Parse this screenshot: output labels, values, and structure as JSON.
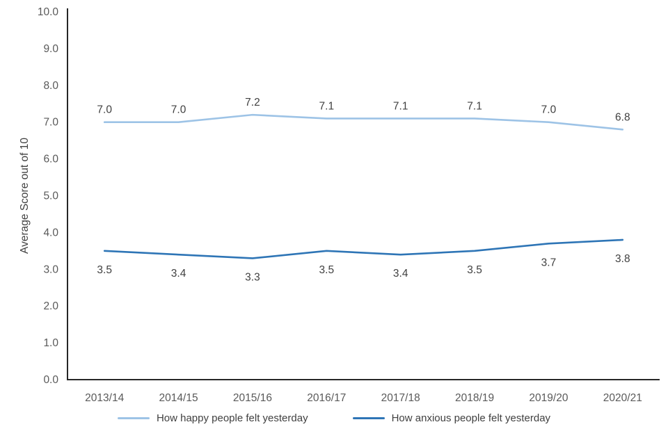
{
  "chart_data": {
    "type": "line",
    "categories": [
      "2013/14",
      "2014/15",
      "2015/16",
      "2016/17",
      "2017/18",
      "2018/19",
      "2019/20",
      "2020/21"
    ],
    "series": [
      {
        "name": "How happy people felt yesterday",
        "values": [
          7.0,
          7.0,
          7.2,
          7.1,
          7.1,
          7.1,
          7.0,
          6.8
        ],
        "color": "#9DC3E6",
        "label_position": "above"
      },
      {
        "name": "How anxious people felt yesterday",
        "values": [
          3.5,
          3.4,
          3.3,
          3.5,
          3.4,
          3.5,
          3.7,
          3.8
        ],
        "color": "#2E75B6",
        "label_position": "below"
      }
    ],
    "title": "",
    "xlabel": "",
    "ylabel": "Average Score out of 10",
    "ylim": [
      0,
      10
    ],
    "ytick_step": 1,
    "yticks": [
      "0.0",
      "1.0",
      "2.0",
      "3.0",
      "4.0",
      "5.0",
      "6.0",
      "7.0",
      "8.0",
      "9.0",
      "10.0"
    ],
    "grid": false,
    "legend_position": "bottom",
    "axis_color": "#262626",
    "tick_color": "#595959",
    "data_label_color": "#404040"
  }
}
